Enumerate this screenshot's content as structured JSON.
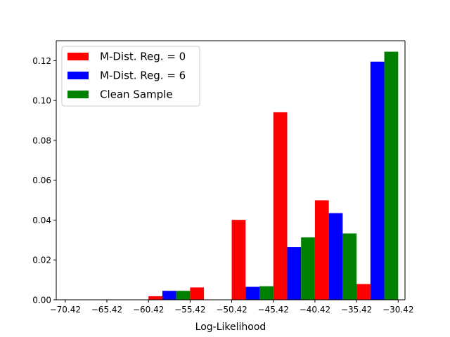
{
  "chart_data": {
    "type": "bar",
    "title": "",
    "xlabel": "Log-Likelihood",
    "ylabel": "",
    "xlim": [
      -71.5,
      -29.6
    ],
    "ylim": [
      0,
      0.13
    ],
    "xticks": [
      "−70.42",
      "−65.42",
      "−60.42",
      "−55.42",
      "−50.42",
      "−45.42",
      "−40.42",
      "−35.42",
      "−30.42"
    ],
    "xtick_values": [
      -70.42,
      -65.42,
      -60.42,
      -55.42,
      -50.42,
      -45.42,
      -40.42,
      -35.42,
      -30.42
    ],
    "yticks": [
      "0.00",
      "0.02",
      "0.04",
      "0.06",
      "0.08",
      "0.10",
      "0.12"
    ],
    "ytick_values": [
      0,
      0.02,
      0.04,
      0.06,
      0.08,
      0.1,
      0.12
    ],
    "bin_edges": [
      -70.42,
      -65.42,
      -60.42,
      -55.42,
      -50.42,
      -45.42,
      -40.42,
      -35.42,
      -30.42
    ],
    "bin_width": 5,
    "legend_position": "upper-left",
    "grid": false,
    "series": [
      {
        "name": "M-Dist. Reg. = 0",
        "color": "#ff0000",
        "values": [
          0,
          0,
          0.0018,
          0.0062,
          0.0401,
          0.0941,
          0.0499,
          0.0079
        ]
      },
      {
        "name": "M-Dist. Reg. = 6",
        "color": "#0000ff",
        "values": [
          0,
          0,
          0.0045,
          0,
          0.0065,
          0.0264,
          0.0435,
          0.1195
        ]
      },
      {
        "name": "Clean Sample",
        "color": "#008000",
        "values": [
          0,
          0,
          0.0045,
          0,
          0.0068,
          0.0313,
          0.0333,
          0.1245
        ]
      }
    ]
  }
}
